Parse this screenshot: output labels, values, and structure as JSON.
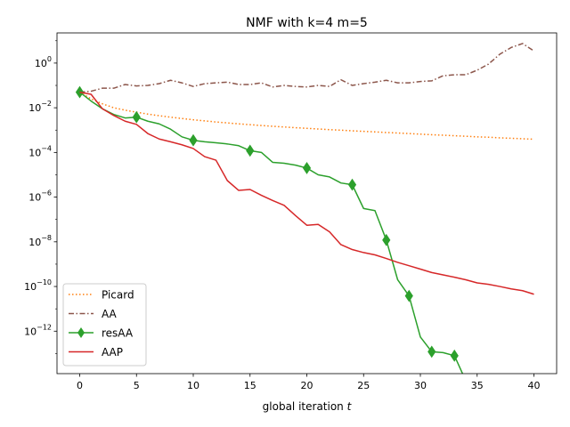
{
  "chart_data": {
    "type": "line",
    "title": "NMF with k=4 m=5",
    "xlabel": "global iteration",
    "xlabel_var": "t",
    "ylabel": "",
    "yscale": "log",
    "xlim": [
      -2,
      42
    ],
    "ylim_exp": [
      -13.9,
      1.35
    ],
    "xticks": [
      0,
      5,
      10,
      15,
      20,
      25,
      30,
      35,
      40
    ],
    "yticks_exp": [
      0,
      -2,
      -4,
      -6,
      -8,
      -10,
      -12
    ],
    "grid": false,
    "legend": "lower-left",
    "series": [
      {
        "name": "Picard",
        "color": "#ff7f0e",
        "style": "dotted",
        "x": [
          0,
          1,
          2,
          3,
          4,
          5,
          6,
          7,
          8,
          9,
          10,
          11,
          12,
          13,
          14,
          15,
          16,
          17,
          18,
          19,
          20,
          21,
          22,
          23,
          24,
          25,
          26,
          27,
          28,
          29,
          30,
          31,
          32,
          33,
          34,
          35,
          36,
          37,
          38,
          39,
          40
        ],
        "y": [
          0.05,
          0.025,
          0.015,
          0.01,
          0.0078,
          0.0063,
          0.0052,
          0.0044,
          0.0038,
          0.0033,
          0.0029,
          0.0026,
          0.0023,
          0.0021,
          0.0019,
          0.00175,
          0.0016,
          0.00148,
          0.00138,
          0.00128,
          0.0012,
          0.00112,
          0.00105,
          0.00099,
          0.00093,
          0.00088,
          0.00083,
          0.00078,
          0.00074,
          0.0007,
          0.00066,
          0.00062,
          0.00059,
          0.00056,
          0.00053,
          0.0005,
          0.00048,
          0.00045,
          0.00043,
          0.00041,
          0.00039
        ]
      },
      {
        "name": "AA",
        "color": "#8c564b",
        "style": "dashdot",
        "x": [
          0,
          1,
          2,
          3,
          4,
          5,
          6,
          7,
          8,
          9,
          10,
          11,
          12,
          13,
          14,
          15,
          16,
          17,
          18,
          19,
          20,
          21,
          22,
          23,
          24,
          25,
          26,
          27,
          28,
          29,
          30,
          31,
          32,
          33,
          34,
          35,
          36,
          37,
          38,
          39,
          40
        ],
        "y": [
          0.05,
          0.055,
          0.075,
          0.075,
          0.11,
          0.095,
          0.1,
          0.12,
          0.17,
          0.13,
          0.09,
          0.12,
          0.13,
          0.14,
          0.11,
          0.11,
          0.13,
          0.085,
          0.1,
          0.09,
          0.085,
          0.1,
          0.09,
          0.18,
          0.1,
          0.12,
          0.14,
          0.17,
          0.13,
          0.13,
          0.15,
          0.16,
          0.27,
          0.3,
          0.3,
          0.48,
          0.9,
          2.5,
          5.0,
          7.5,
          3.5
        ]
      },
      {
        "name": "resAA",
        "color": "#2ca02c",
        "style": "solid",
        "marker": "diamond",
        "marker_x": [
          0,
          5,
          10,
          15,
          20,
          24,
          27,
          29,
          31,
          33
        ],
        "x": [
          0,
          1,
          2,
          3,
          4,
          5,
          6,
          7,
          8,
          9,
          10,
          11,
          12,
          13,
          14,
          15,
          16,
          17,
          18,
          19,
          20,
          21,
          22,
          23,
          24,
          25,
          26,
          27,
          28,
          29,
          30,
          31,
          32,
          33,
          34
        ],
        "y": [
          0.05,
          0.02,
          0.009,
          0.005,
          0.0035,
          0.0038,
          0.0025,
          0.0019,
          0.0011,
          0.0005,
          0.00035,
          0.0003,
          0.00027,
          0.00024,
          0.0002,
          0.00012,
          0.0001,
          3.6e-05,
          3.3e-05,
          2.7e-05,
          2e-05,
          1e-05,
          8e-06,
          4.3e-06,
          3.6e-06,
          3.1e-07,
          2.5e-07,
          1.2e-08,
          2e-10,
          3.8e-11,
          5.5e-13,
          1.2e-13,
          1.1e-13,
          8e-14,
          6e-15
        ]
      },
      {
        "name": "AAP",
        "color": "#d62728",
        "style": "solid",
        "x": [
          0,
          1,
          2,
          3,
          4,
          5,
          6,
          7,
          8,
          9,
          10,
          11,
          12,
          13,
          14,
          15,
          16,
          17,
          18,
          19,
          20,
          21,
          22,
          23,
          24,
          25,
          26,
          27,
          28,
          29,
          30,
          31,
          32,
          33,
          34,
          35,
          36,
          37,
          38,
          39,
          40
        ],
        "y": [
          0.05,
          0.04,
          0.009,
          0.0045,
          0.0025,
          0.0018,
          0.0007,
          0.0004,
          0.0003,
          0.00022,
          0.00015,
          6.5e-05,
          4.5e-05,
          5.5e-06,
          2e-06,
          2.2e-06,
          1.2e-06,
          7e-07,
          4.3e-07,
          1.5e-07,
          5.5e-08,
          6e-08,
          2.8e-08,
          7.5e-09,
          4.5e-09,
          3.3e-09,
          2.6e-09,
          1.8e-09,
          1.2e-09,
          8.5e-10,
          6e-10,
          4.2e-10,
          3.3e-10,
          2.6e-10,
          2e-10,
          1.45e-10,
          1.25e-10,
          1e-10,
          7.8e-11,
          6.5e-11,
          4.5e-11
        ]
      }
    ]
  }
}
